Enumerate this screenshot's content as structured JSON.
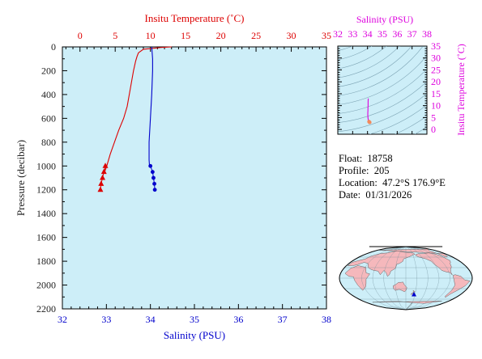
{
  "info": {
    "float_label": "Float:",
    "float_value": "18758",
    "profile_label": "Profile:",
    "profile_value": "205",
    "location_label": "Location:",
    "location_value": "47.2°S  176.9°E",
    "date_label": "Date:",
    "date_value": "01/31/2026"
  },
  "colors": {
    "temperature": "#dd0000",
    "salinity": "#0000cc",
    "ts": "#dd00dd",
    "plot_bg": "#cdeef8",
    "axis_text": "#222222",
    "map_land": "#f5b8bc",
    "map_ocean": "#cdeef8"
  },
  "chart_data": [
    {
      "type": "line",
      "ylabel": "Pressure (decibar)",
      "y_reversed": true,
      "ylim": [
        0,
        2200
      ],
      "yticks": [
        0,
        200,
        400,
        600,
        800,
        1000,
        1200,
        1400,
        1600,
        1800,
        2000,
        2200
      ],
      "grid": false,
      "temperature_axis": {
        "label": "Insitu Temperature (˚C)",
        "position": "top",
        "range": [
          -2.5,
          35
        ],
        "ticks": [
          0,
          5,
          10,
          15,
          20,
          25,
          30,
          35
        ]
      },
      "salinity_axis": {
        "label": "Salinity (PSU)",
        "position": "bottom",
        "range": [
          32,
          38
        ],
        "ticks": [
          32,
          33,
          34,
          35,
          36,
          37,
          38
        ]
      },
      "series": [
        {
          "axis": "temperature_axis",
          "pressure": [
            0,
            5,
            20,
            50,
            80,
            120,
            200,
            300,
            400,
            500,
            600,
            700,
            800,
            900,
            1000,
            1050
          ],
          "values": [
            13,
            11.5,
            9,
            8.3,
            8.1,
            7.9,
            7.6,
            7.3,
            7.0,
            6.7,
            6.2,
            5.5,
            4.9,
            4.3,
            3.8,
            3.5
          ],
          "markers": {
            "shape": "triangle",
            "pressure": [
              1000,
              1050,
              1100,
              1150,
              1200
            ],
            "values": [
              3.6,
              3.4,
              3.2,
              3.0,
              2.9
            ]
          }
        },
        {
          "axis": "salinity_axis",
          "pressure": [
            0,
            50,
            100,
            200,
            400,
            600,
            800,
            950,
            1000
          ],
          "values": [
            34.03,
            34.04,
            34.05,
            34.05,
            34.03,
            34.0,
            33.97,
            33.97,
            33.98
          ],
          "markers": {
            "shape": "circle",
            "pressure": [
              1000,
              1050,
              1100,
              1150,
              1200
            ],
            "values": [
              34.0,
              34.05,
              34.07,
              34.09,
              34.1
            ]
          }
        }
      ]
    },
    {
      "type": "scatter",
      "xlabel": "Salinity (PSU)",
      "ylabel": "Insitu Temperature (˚C)",
      "xlim": [
        32,
        38
      ],
      "ylim": [
        -2,
        35
      ],
      "xticks": [
        32,
        33,
        34,
        35,
        36,
        37,
        38
      ],
      "yticks": [
        0,
        5,
        10,
        15,
        20,
        25,
        30,
        35
      ],
      "background": "density contours",
      "x": [
        34.05,
        34.04,
        34.04,
        34.03,
        34.03,
        34.02,
        34.02,
        34.03,
        34.05,
        34.08,
        34.1,
        34.12,
        34.15
      ],
      "y": [
        13.0,
        11.5,
        10.0,
        9.0,
        8.0,
        7.0,
        6.0,
        5.0,
        4.0,
        3.5,
        3.3,
        3.1,
        3.0
      ]
    }
  ]
}
